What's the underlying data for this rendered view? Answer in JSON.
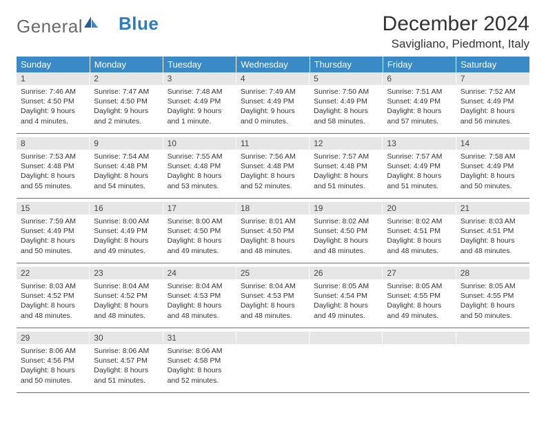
{
  "logo": {
    "word1": "General",
    "word2": "Blue"
  },
  "title": "December 2024",
  "location": "Savigliano, Piedmont, Italy",
  "colors": {
    "header_bg": "#3a8ac8",
    "header_text": "#ffffff",
    "daynum_bg": "#e6e6e6",
    "rule": "#2f7bbf",
    "text": "#333333"
  },
  "weekdays": [
    "Sunday",
    "Monday",
    "Tuesday",
    "Wednesday",
    "Thursday",
    "Friday",
    "Saturday"
  ],
  "weeks": [
    [
      {
        "n": "1",
        "sr": "Sunrise: 7:46 AM",
        "ss": "Sunset: 4:50 PM",
        "dl": "Daylight: 9 hours and 4 minutes."
      },
      {
        "n": "2",
        "sr": "Sunrise: 7:47 AM",
        "ss": "Sunset: 4:50 PM",
        "dl": "Daylight: 9 hours and 2 minutes."
      },
      {
        "n": "3",
        "sr": "Sunrise: 7:48 AM",
        "ss": "Sunset: 4:49 PM",
        "dl": "Daylight: 9 hours and 1 minute."
      },
      {
        "n": "4",
        "sr": "Sunrise: 7:49 AM",
        "ss": "Sunset: 4:49 PM",
        "dl": "Daylight: 9 hours and 0 minutes."
      },
      {
        "n": "5",
        "sr": "Sunrise: 7:50 AM",
        "ss": "Sunset: 4:49 PM",
        "dl": "Daylight: 8 hours and 58 minutes."
      },
      {
        "n": "6",
        "sr": "Sunrise: 7:51 AM",
        "ss": "Sunset: 4:49 PM",
        "dl": "Daylight: 8 hours and 57 minutes."
      },
      {
        "n": "7",
        "sr": "Sunrise: 7:52 AM",
        "ss": "Sunset: 4:49 PM",
        "dl": "Daylight: 8 hours and 56 minutes."
      }
    ],
    [
      {
        "n": "8",
        "sr": "Sunrise: 7:53 AM",
        "ss": "Sunset: 4:48 PM",
        "dl": "Daylight: 8 hours and 55 minutes."
      },
      {
        "n": "9",
        "sr": "Sunrise: 7:54 AM",
        "ss": "Sunset: 4:48 PM",
        "dl": "Daylight: 8 hours and 54 minutes."
      },
      {
        "n": "10",
        "sr": "Sunrise: 7:55 AM",
        "ss": "Sunset: 4:48 PM",
        "dl": "Daylight: 8 hours and 53 minutes."
      },
      {
        "n": "11",
        "sr": "Sunrise: 7:56 AM",
        "ss": "Sunset: 4:48 PM",
        "dl": "Daylight: 8 hours and 52 minutes."
      },
      {
        "n": "12",
        "sr": "Sunrise: 7:57 AM",
        "ss": "Sunset: 4:48 PM",
        "dl": "Daylight: 8 hours and 51 minutes."
      },
      {
        "n": "13",
        "sr": "Sunrise: 7:57 AM",
        "ss": "Sunset: 4:49 PM",
        "dl": "Daylight: 8 hours and 51 minutes."
      },
      {
        "n": "14",
        "sr": "Sunrise: 7:58 AM",
        "ss": "Sunset: 4:49 PM",
        "dl": "Daylight: 8 hours and 50 minutes."
      }
    ],
    [
      {
        "n": "15",
        "sr": "Sunrise: 7:59 AM",
        "ss": "Sunset: 4:49 PM",
        "dl": "Daylight: 8 hours and 50 minutes."
      },
      {
        "n": "16",
        "sr": "Sunrise: 8:00 AM",
        "ss": "Sunset: 4:49 PM",
        "dl": "Daylight: 8 hours and 49 minutes."
      },
      {
        "n": "17",
        "sr": "Sunrise: 8:00 AM",
        "ss": "Sunset: 4:50 PM",
        "dl": "Daylight: 8 hours and 49 minutes."
      },
      {
        "n": "18",
        "sr": "Sunrise: 8:01 AM",
        "ss": "Sunset: 4:50 PM",
        "dl": "Daylight: 8 hours and 48 minutes."
      },
      {
        "n": "19",
        "sr": "Sunrise: 8:02 AM",
        "ss": "Sunset: 4:50 PM",
        "dl": "Daylight: 8 hours and 48 minutes."
      },
      {
        "n": "20",
        "sr": "Sunrise: 8:02 AM",
        "ss": "Sunset: 4:51 PM",
        "dl": "Daylight: 8 hours and 48 minutes."
      },
      {
        "n": "21",
        "sr": "Sunrise: 8:03 AM",
        "ss": "Sunset: 4:51 PM",
        "dl": "Daylight: 8 hours and 48 minutes."
      }
    ],
    [
      {
        "n": "22",
        "sr": "Sunrise: 8:03 AM",
        "ss": "Sunset: 4:52 PM",
        "dl": "Daylight: 8 hours and 48 minutes."
      },
      {
        "n": "23",
        "sr": "Sunrise: 8:04 AM",
        "ss": "Sunset: 4:52 PM",
        "dl": "Daylight: 8 hours and 48 minutes."
      },
      {
        "n": "24",
        "sr": "Sunrise: 8:04 AM",
        "ss": "Sunset: 4:53 PM",
        "dl": "Daylight: 8 hours and 48 minutes."
      },
      {
        "n": "25",
        "sr": "Sunrise: 8:04 AM",
        "ss": "Sunset: 4:53 PM",
        "dl": "Daylight: 8 hours and 48 minutes."
      },
      {
        "n": "26",
        "sr": "Sunrise: 8:05 AM",
        "ss": "Sunset: 4:54 PM",
        "dl": "Daylight: 8 hours and 49 minutes."
      },
      {
        "n": "27",
        "sr": "Sunrise: 8:05 AM",
        "ss": "Sunset: 4:55 PM",
        "dl": "Daylight: 8 hours and 49 minutes."
      },
      {
        "n": "28",
        "sr": "Sunrise: 8:05 AM",
        "ss": "Sunset: 4:55 PM",
        "dl": "Daylight: 8 hours and 50 minutes."
      }
    ],
    [
      {
        "n": "29",
        "sr": "Sunrise: 8:06 AM",
        "ss": "Sunset: 4:56 PM",
        "dl": "Daylight: 8 hours and 50 minutes."
      },
      {
        "n": "30",
        "sr": "Sunrise: 8:06 AM",
        "ss": "Sunset: 4:57 PM",
        "dl": "Daylight: 8 hours and 51 minutes."
      },
      {
        "n": "31",
        "sr": "Sunrise: 8:06 AM",
        "ss": "Sunset: 4:58 PM",
        "dl": "Daylight: 8 hours and 52 minutes."
      },
      {
        "empty": true
      },
      {
        "empty": true
      },
      {
        "empty": true
      },
      {
        "empty": true
      }
    ]
  ]
}
